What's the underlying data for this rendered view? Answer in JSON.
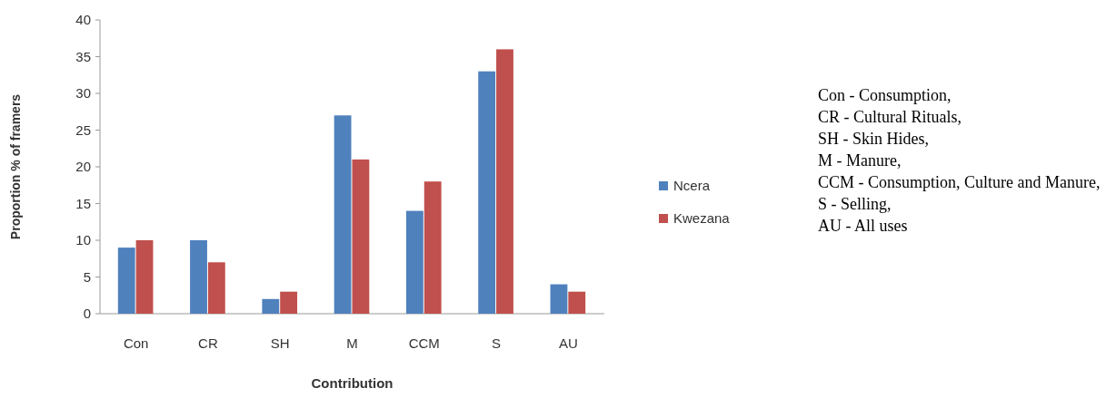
{
  "chart_data": {
    "type": "bar",
    "xlabel": "Contribution",
    "ylabel": "Proportion % of framers",
    "categories": [
      "Con",
      "CR",
      "SH",
      "M",
      "CCM",
      "S",
      "AU"
    ],
    "series": [
      {
        "name": "Ncera",
        "color": "#4f81bd",
        "values": [
          9,
          10,
          2,
          27,
          14,
          33,
          4
        ]
      },
      {
        "name": "Kwezana",
        "color": "#c0504d",
        "values": [
          10,
          7,
          3,
          21,
          18,
          36,
          3
        ]
      }
    ],
    "ylim": [
      0,
      40
    ],
    "yticks": [
      0,
      5,
      10,
      15,
      20,
      25,
      30,
      35,
      40
    ],
    "grid": false,
    "legend": "right",
    "annotations": [
      "Con - Consumption,",
      "CR - Cultural Rituals,",
      "SH - Skin Hides,",
      "M - Manure,",
      "CCM - Consumption, Culture and Manure,",
      "S - Selling,",
      "AU - All uses"
    ]
  }
}
